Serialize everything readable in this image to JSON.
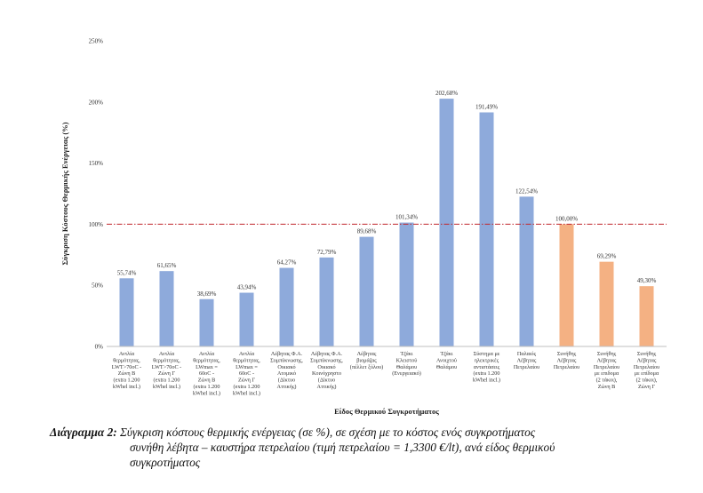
{
  "chart_data": {
    "type": "bar",
    "title": "",
    "xlabel": "Είδος Θερμικού Συγκροτήματος",
    "ylabel": "Σύγκριση Κόστους Θερμικής Ενέργειας (%)",
    "ylim": [
      0,
      250
    ],
    "yticks": [
      "0%",
      "50%",
      "100%",
      "150%",
      "200%",
      "250%"
    ],
    "ytick_values": [
      0,
      50,
      100,
      150,
      200,
      250
    ],
    "grid": false,
    "reference_line": {
      "value": 100,
      "style": "dash-dot",
      "color": "#c0262d"
    },
    "colors": {
      "blue": "#8eaadb",
      "orange": "#f4b183"
    },
    "bars": [
      {
        "category": [
          "Αντλία",
          "θερμότητας,",
          "LWT>70oC -",
          "Ζώνη Β",
          "(extra 1.200",
          "kWhel incl.)"
        ],
        "value": 55.74,
        "label": "55,74%",
        "color": "blue"
      },
      {
        "category": [
          "Αντλία",
          "θερμότητας,",
          "LWT>70oC -",
          "Ζώνη Γ",
          "(extra 1.200",
          "kWhel incl.)"
        ],
        "value": 61.65,
        "label": "61,65%",
        "color": "blue"
      },
      {
        "category": [
          "Αντλία",
          "θερμότητας,",
          "LWmax =",
          "60oC -",
          "Ζώνη Β",
          "(extra 1.200",
          "kWhel incl.)"
        ],
        "value": 38.69,
        "label": "38,69%",
        "color": "blue"
      },
      {
        "category": [
          "Αντλία",
          "θερμότητας,",
          "LWmax =",
          "60oC -",
          "Ζώνη Γ",
          "(extra 1.200",
          "kWhel incl.)"
        ],
        "value": 43.94,
        "label": "43,94%",
        "color": "blue"
      },
      {
        "category": [
          "Λέβητας Φ.Α.",
          "Συμπύκνωσης,",
          "Οικιακό",
          "Ατομικό",
          "(Δίκτυο",
          "Αττικής)"
        ],
        "value": 64.27,
        "label": "64,27%",
        "color": "blue"
      },
      {
        "category": [
          "Λέβητας Φ.Α.",
          "Συμπύκνωσης,",
          "Οικιακό",
          "Κοινόχρηστο",
          "(Δίκτυο",
          "Αττικής)"
        ],
        "value": 72.79,
        "label": "72,79%",
        "color": "blue"
      },
      {
        "category": [
          "Λέβητας",
          "βιομάζας",
          "(πέλλετ ξύλου)"
        ],
        "value": 89.68,
        "label": "89,68%",
        "color": "blue"
      },
      {
        "category": [
          "Τζάκι",
          "Κλειστού",
          "Θαλάμου",
          "(Ενεργειακό)"
        ],
        "value": 101.34,
        "label": "101,34%",
        "color": "blue"
      },
      {
        "category": [
          "Τζάκι",
          "Ανοιχτού",
          "Θαλάμου"
        ],
        "value": 202.68,
        "label": "202,68%",
        "color": "blue"
      },
      {
        "category": [
          "Σύστημα με",
          "ηλεκτρικές",
          "αντιστάσεις",
          "(extra 1.200",
          "kWhel incl.)"
        ],
        "value": 191.49,
        "label": "191,49%",
        "color": "blue"
      },
      {
        "category": [
          "Παλαιός",
          "Λέβητας",
          "Πετρελαίου"
        ],
        "value": 122.54,
        "label": "122,54%",
        "color": "blue"
      },
      {
        "category": [
          "Συνήθης",
          "Λέβητας",
          "Πετρελαίου"
        ],
        "value": 100.0,
        "label": "100,00%",
        "color": "orange"
      },
      {
        "category": [
          "Συνήθης",
          "Λέβητας",
          "Πετρελαίου",
          "με επιδομα",
          "(2 τάκοι),",
          "Ζώνη Β"
        ],
        "value": 69.29,
        "label": "69,29%",
        "color": "orange"
      },
      {
        "category": [
          "Συνήθης",
          "Λέβητας",
          "Πετρελαίου",
          "με επίδομα",
          "(2 τάκοι),",
          "Ζώνη Γ"
        ],
        "value": 49.3,
        "label": "49,30%",
        "color": "orange"
      }
    ]
  },
  "caption": {
    "label": "Διάγραμμα 2:",
    "line1": "Σύγκριση κόστους θερμικής ενέργειας (σε %), σε σχέση με το κόστος ενός συγκροτήματος",
    "line2": "συνήθη λέβητα – καυστήρα πετρελαίου (τιμή πετρελαίου = 1,3300 €/lt), ανά είδος θερμικού",
    "line3": "συγκροτήματος"
  }
}
